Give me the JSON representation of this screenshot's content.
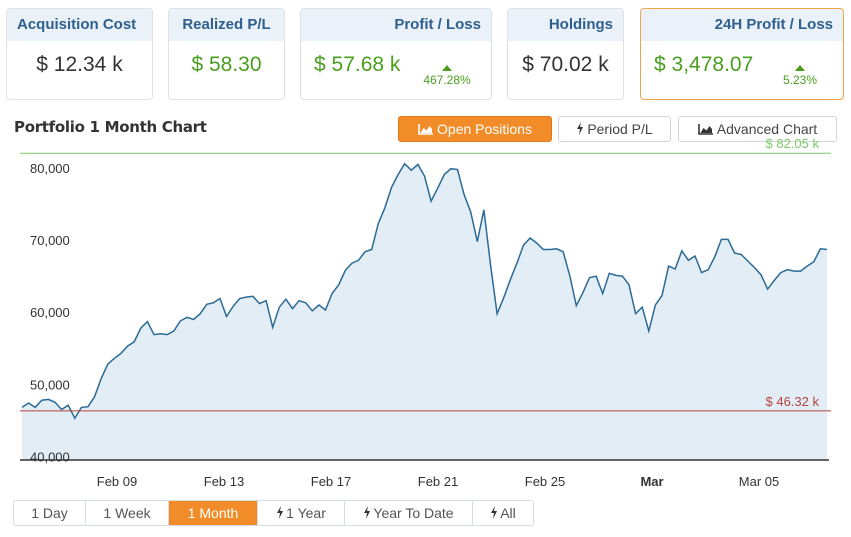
{
  "cards": [
    {
      "label": "Acquisition Cost",
      "value": "$ 12.34 k"
    },
    {
      "label": "Realized P/L",
      "value": "$ 58.30"
    },
    {
      "label": "Profit / Loss",
      "value": "$ 57.68 k",
      "pct": "467.28%"
    },
    {
      "label": "Holdings",
      "value": "$ 70.02 k"
    },
    {
      "label": "24H Profit / Loss",
      "value": "$ 3,478.07",
      "pct": "5.23%"
    }
  ],
  "chart_title": "Portfolio 1 Month Chart",
  "view_buttons": {
    "open_positions": "Open Positions",
    "period_pl": "Period P/L",
    "advanced_chart": "Advanced Chart"
  },
  "range_buttons": [
    "1 Day",
    "1 Week",
    "1 Month",
    "1 Year",
    "Year To Date",
    "All"
  ],
  "range_selected": "1 Month",
  "colors": {
    "accent": "#f28c28",
    "positive": "#4a9e1f",
    "line": "#2b6a96",
    "area": "#e3edf6",
    "high_line": "#7cc96a",
    "low_line": "#b5443c"
  },
  "icons": {
    "chart": "area-chart-icon",
    "bolt": "lightning-bolt-icon"
  },
  "chart_data": {
    "type": "area",
    "x_tick_labels": [
      "Feb 09",
      "Feb 13",
      "Feb 17",
      "Feb 21",
      "Feb 25",
      "Mar",
      "Mar 05"
    ],
    "y_tick_labels": [
      "80,000",
      "70,000",
      "60,000",
      "50,000",
      "40,000"
    ],
    "y_ticks": [
      80000,
      70000,
      60000,
      50000,
      40000
    ],
    "ylim": [
      39500,
      82500
    ],
    "grid": false,
    "reference_lines": [
      {
        "label": "$ 82.05 k",
        "value": 82050
      },
      {
        "label": "$ 46.32 k",
        "value": 46320
      }
    ],
    "series": [
      {
        "values": [
          46800,
          47400,
          46800,
          47800,
          47900,
          47500,
          46500,
          47100,
          45300,
          46800,
          46900,
          48300,
          50800,
          52800,
          53600,
          54300,
          55300,
          55900,
          57800,
          58700,
          56900,
          57000,
          56900,
          57400,
          58800,
          59300,
          59000,
          59800,
          61100,
          61300,
          61900,
          59400,
          60800,
          61900,
          62100,
          62200,
          61200,
          61600,
          57900,
          60700,
          61800,
          60500,
          61600,
          61300,
          60200,
          61000,
          60300,
          62600,
          63800,
          65800,
          66800,
          67200,
          68400,
          68700,
          72300,
          74500,
          77300,
          79100,
          80600,
          79700,
          80500,
          78900,
          75400,
          77200,
          79100,
          79900,
          79800,
          76300,
          73900,
          69800,
          74200,
          66600,
          59800,
          62000,
          64500,
          66800,
          69300,
          70300,
          69600,
          68700,
          68700,
          68800,
          68400,
          65100,
          60900,
          62700,
          64800,
          65000,
          62600,
          65400,
          65100,
          65000,
          63800,
          59800,
          60700,
          57400,
          61000,
          62300,
          66400,
          66000,
          68500,
          67200,
          67800,
          65500,
          65900,
          67700,
          70100,
          70100,
          68200,
          68000,
          67100,
          66200,
          65200,
          63200,
          64400,
          65500,
          65900,
          65700,
          65700,
          66400,
          67000,
          68800,
          68700
        ]
      }
    ]
  }
}
